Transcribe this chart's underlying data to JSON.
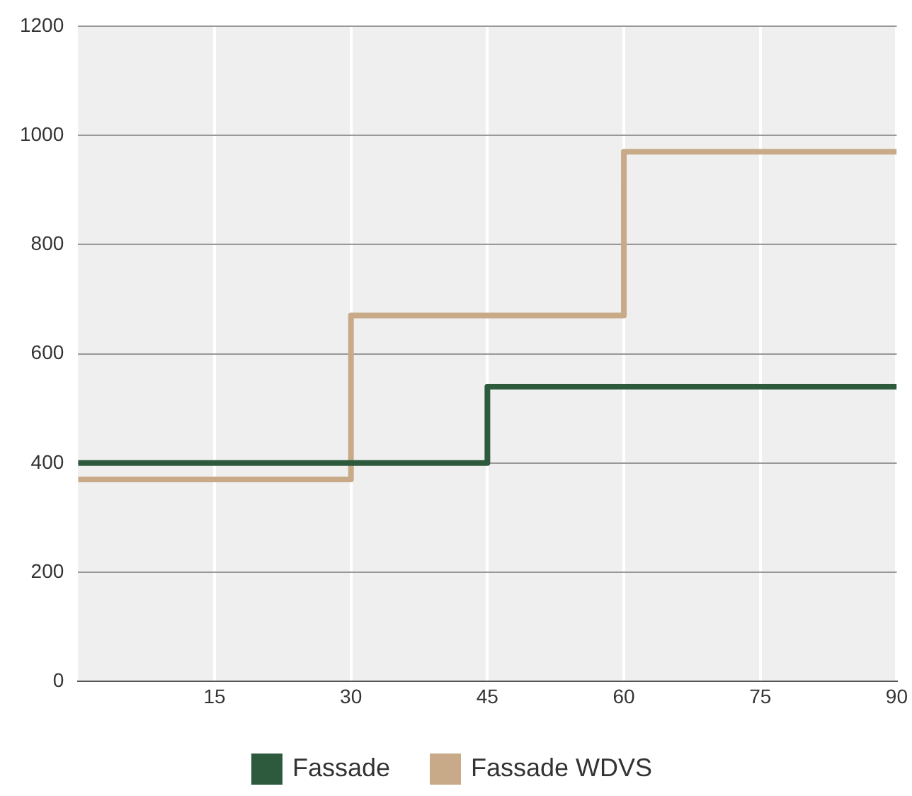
{
  "chart_data": {
    "type": "step",
    "xlim": [
      0,
      90
    ],
    "xticks": [
      15,
      30,
      45,
      60,
      75,
      90
    ],
    "ylim": [
      0,
      1200
    ],
    "yticks": [
      0,
      200,
      400,
      600,
      800,
      1000,
      1200
    ],
    "grid": true,
    "legend": "bottom",
    "marker": "none",
    "series": [
      {
        "name": "Fassade",
        "color": "#2d5a3c",
        "x": [
          0,
          45,
          90
        ],
        "values": [
          400,
          540,
          540
        ]
      },
      {
        "name": "Fassade WDVS",
        "color": "#c8aa88",
        "x": [
          0,
          30,
          60,
          90
        ],
        "values": [
          370,
          670,
          970,
          970
        ]
      }
    ]
  }
}
